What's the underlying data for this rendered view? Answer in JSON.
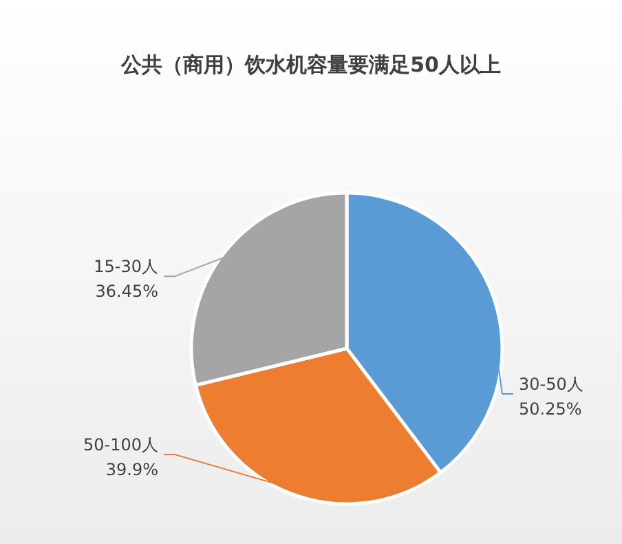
{
  "chart_data": {
    "type": "pie",
    "title": "公共（商用）饮水机容量要满足50人以上",
    "categories": [
      "30-50人",
      "50-100人",
      "15-30人"
    ],
    "values": [
      50.25,
      39.9,
      36.45
    ],
    "value_labels": [
      "50.25%",
      "39.9%",
      "36.45%"
    ],
    "colors": [
      "#5b9bd5",
      "#ed7d31",
      "#a5a5a5"
    ],
    "legend": false
  }
}
